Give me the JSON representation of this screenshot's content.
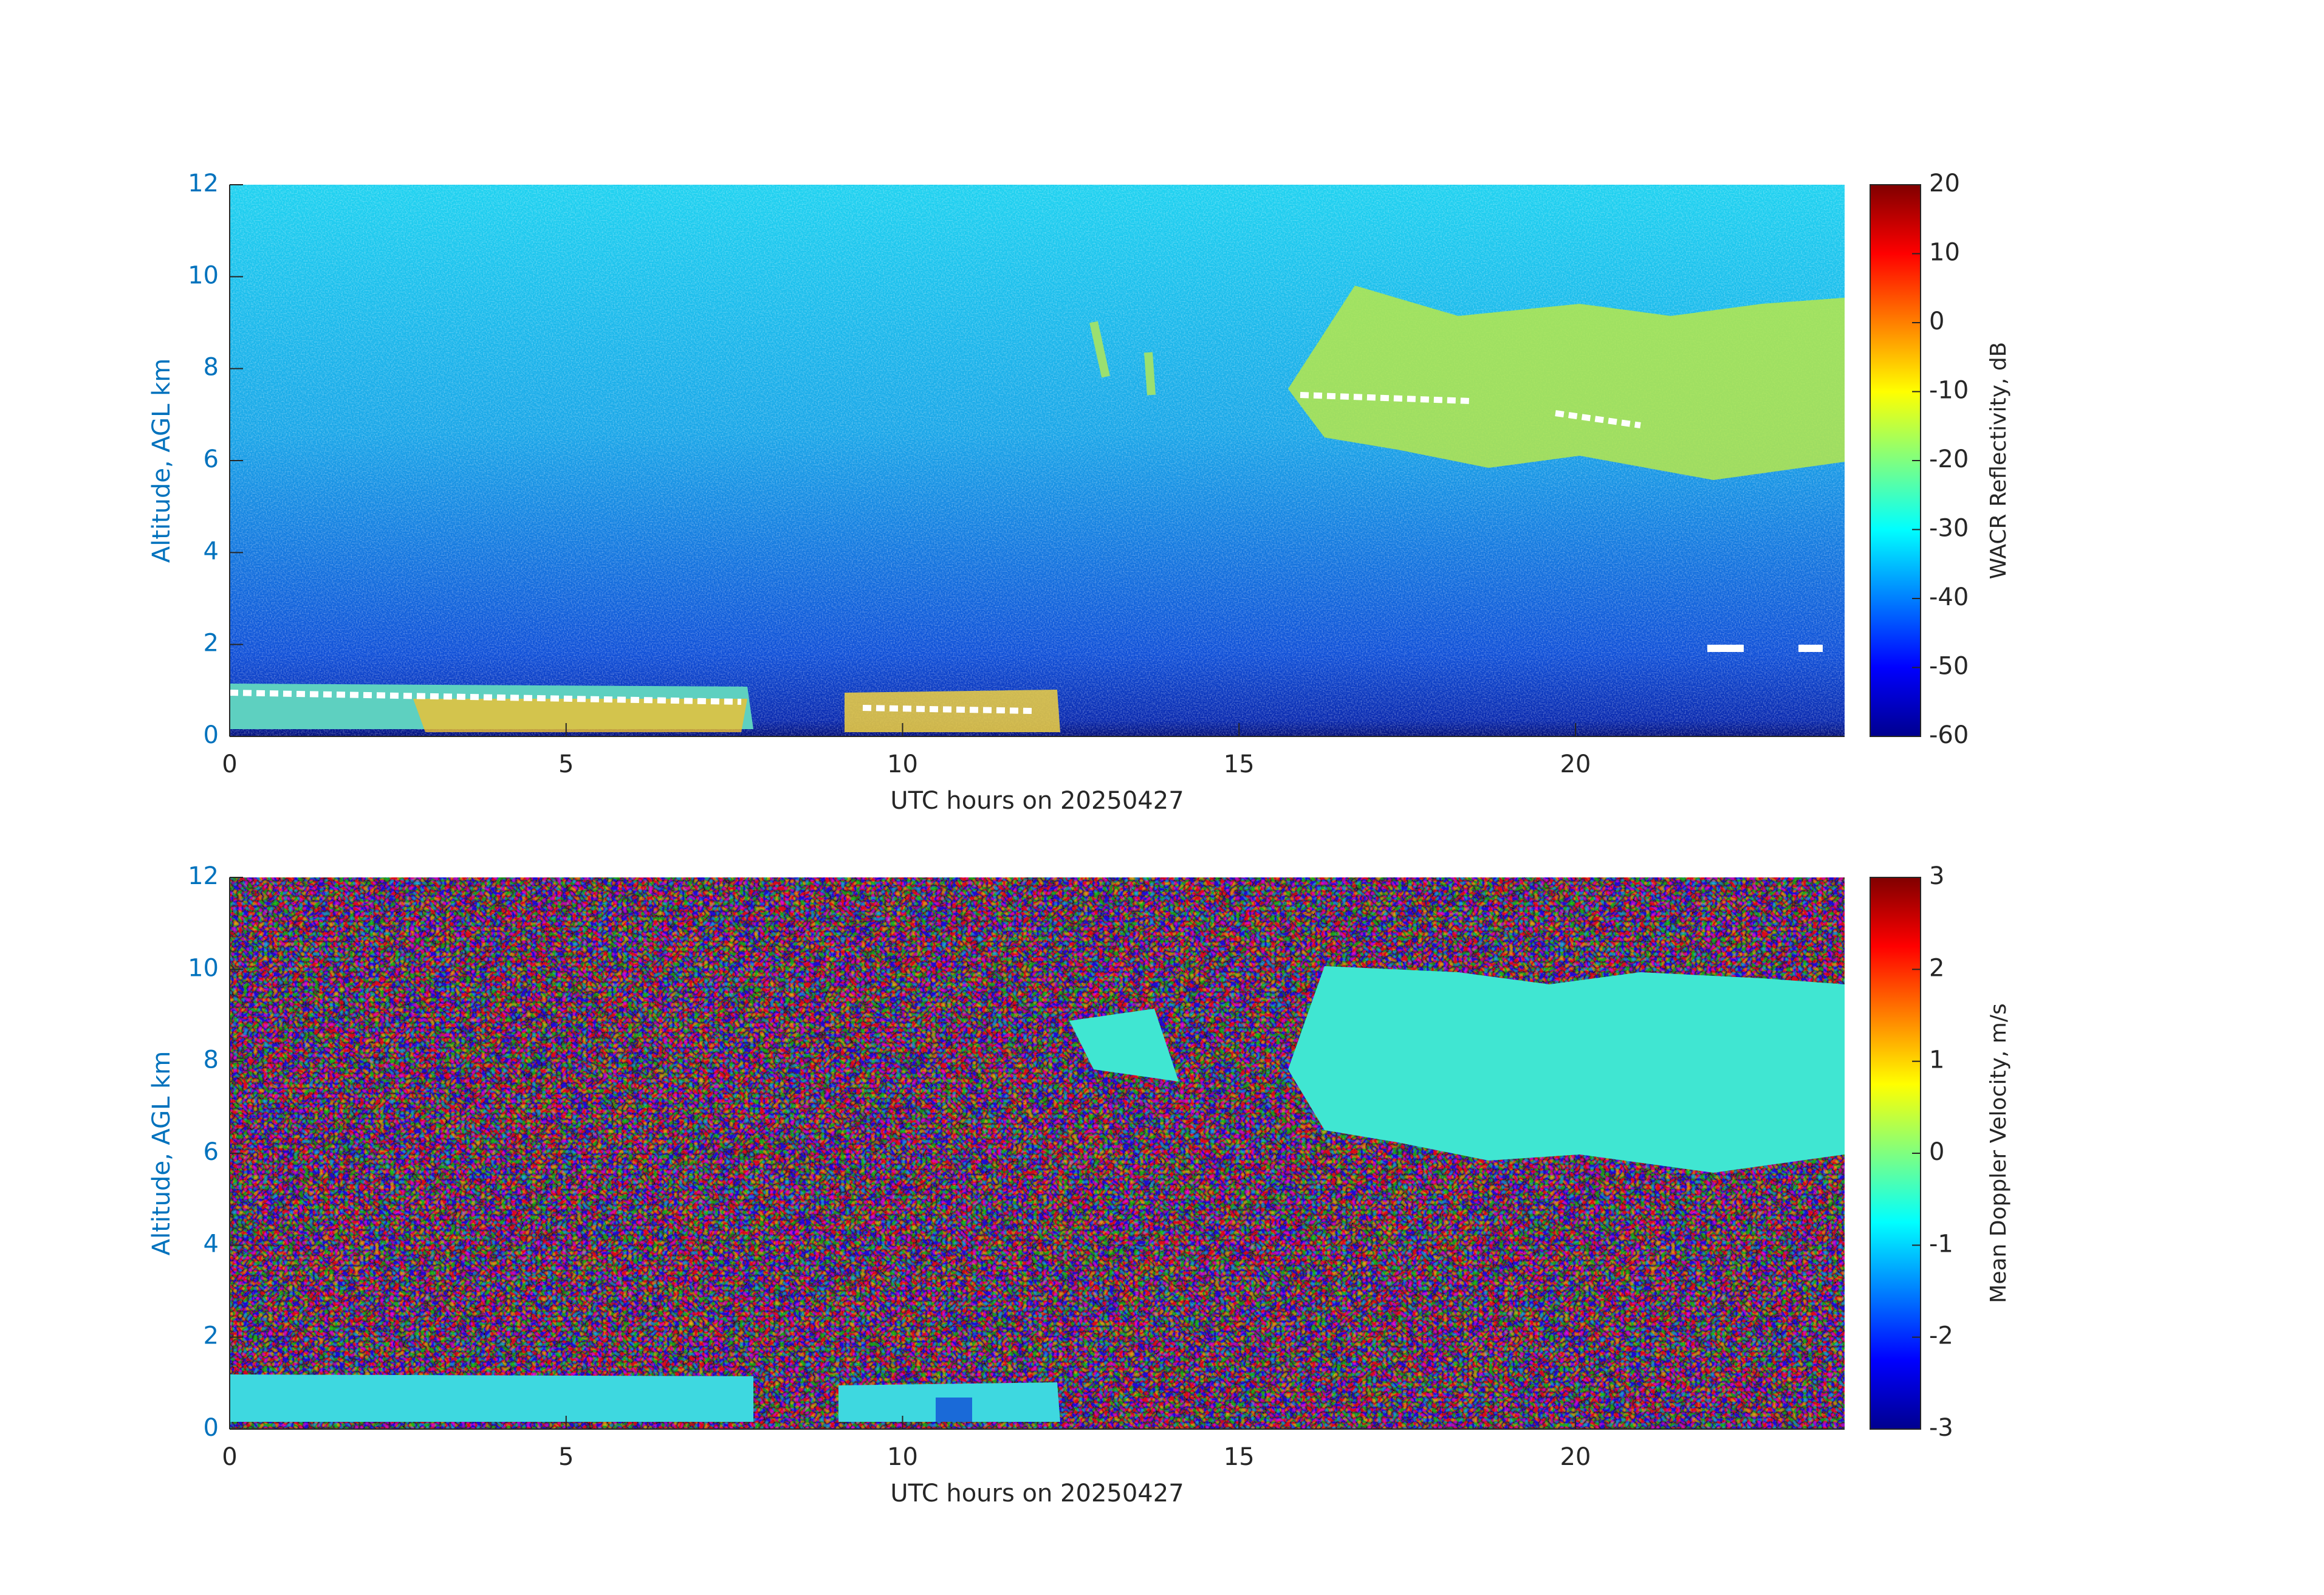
{
  "chart_data": [
    {
      "type": "heatmap",
      "xlabel": "UTC hours on 20250427",
      "ylabel": "Altitude, AGL km",
      "colorbar_label": "WACR Reflectivity, dB",
      "xlim": [
        0,
        24
      ],
      "xticks": [
        0,
        5,
        10,
        15,
        20
      ],
      "ylim": [
        0,
        12
      ],
      "yticks": [
        0,
        2,
        4,
        6,
        8,
        10,
        12
      ],
      "clim": [
        -60,
        20
      ],
      "cticks": [
        -60,
        -50,
        -40,
        -30,
        -20,
        -10,
        0,
        10,
        20
      ],
      "colormap": "jet"
    },
    {
      "type": "heatmap",
      "xlabel": "UTC hours on 20250427",
      "ylabel": "Altitude, AGL km",
      "colorbar_label": "Mean Doppler Velocity, m/s",
      "xlim": [
        0,
        24
      ],
      "xticks": [
        0,
        5,
        10,
        15,
        20
      ],
      "ylim": [
        0,
        12
      ],
      "yticks": [
        0,
        2,
        4,
        6,
        8,
        10,
        12
      ],
      "clim": [
        -3,
        3
      ],
      "cticks": [
        -3,
        -2,
        -1,
        0,
        1,
        2,
        3
      ],
      "colormap": "jet"
    }
  ]
}
